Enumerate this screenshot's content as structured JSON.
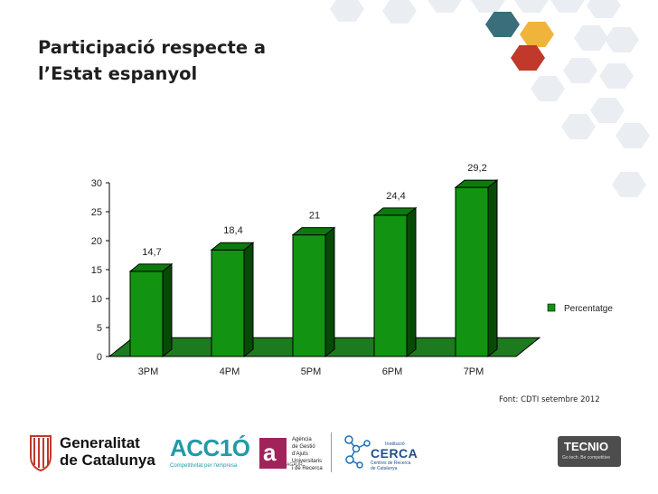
{
  "slide": {
    "title_lines": [
      "Participació respecte a",
      "l’Estat espanyol"
    ],
    "source": "Font: CDTI setembre 2012"
  },
  "chart_data": {
    "type": "bar",
    "style": "3d",
    "title": "",
    "xlabel": "",
    "ylabel": "",
    "categories": [
      "3PM",
      "4PM",
      "5PM",
      "6PM",
      "7PM"
    ],
    "series": [
      {
        "name": "Percentatge",
        "values": [
          14.7,
          18.4,
          21,
          24.4,
          29.2
        ]
      }
    ],
    "data_labels": [
      "14,7",
      "18,4",
      "21",
      "24,4",
      "29,2"
    ],
    "yticks": [
      0,
      5,
      10,
      15,
      20,
      25,
      30
    ],
    "ylim": [
      0,
      30
    ],
    "grid": false,
    "legend_position": "right",
    "colors": {
      "bar": "#129412",
      "bar_top": "#0d7a0d",
      "bar_side": "#064a06",
      "floor": "#1e7a1e"
    }
  },
  "logos": {
    "generalitat": {
      "icon": "generalitat-seal-icon",
      "lines": [
        "Generalitat",
        "de Catalunya"
      ]
    },
    "acc10": {
      "name": "ACC1Ó",
      "tagline": "Competitivitat per l'empresa"
    },
    "agaur": {
      "letter": "a",
      "small": "AGAUR",
      "lines": [
        "Agència",
        "de Gestió",
        "d'Ajuts",
        "Universitaris",
        "i de Recerca"
      ]
    },
    "cerca": {
      "icon": "molecule-icon",
      "pre": "Institució",
      "name": "CERCA",
      "lines": [
        "Centres de Recerca",
        "de Catalunya"
      ]
    },
    "tecnio": {
      "name": "TECNIO",
      "tagline": "Go tech. Be competitive"
    }
  },
  "decor": {
    "colors": [
      "#3a6e7a",
      "#f0b43c",
      "#c0392b",
      "#e8ecf2"
    ]
  }
}
